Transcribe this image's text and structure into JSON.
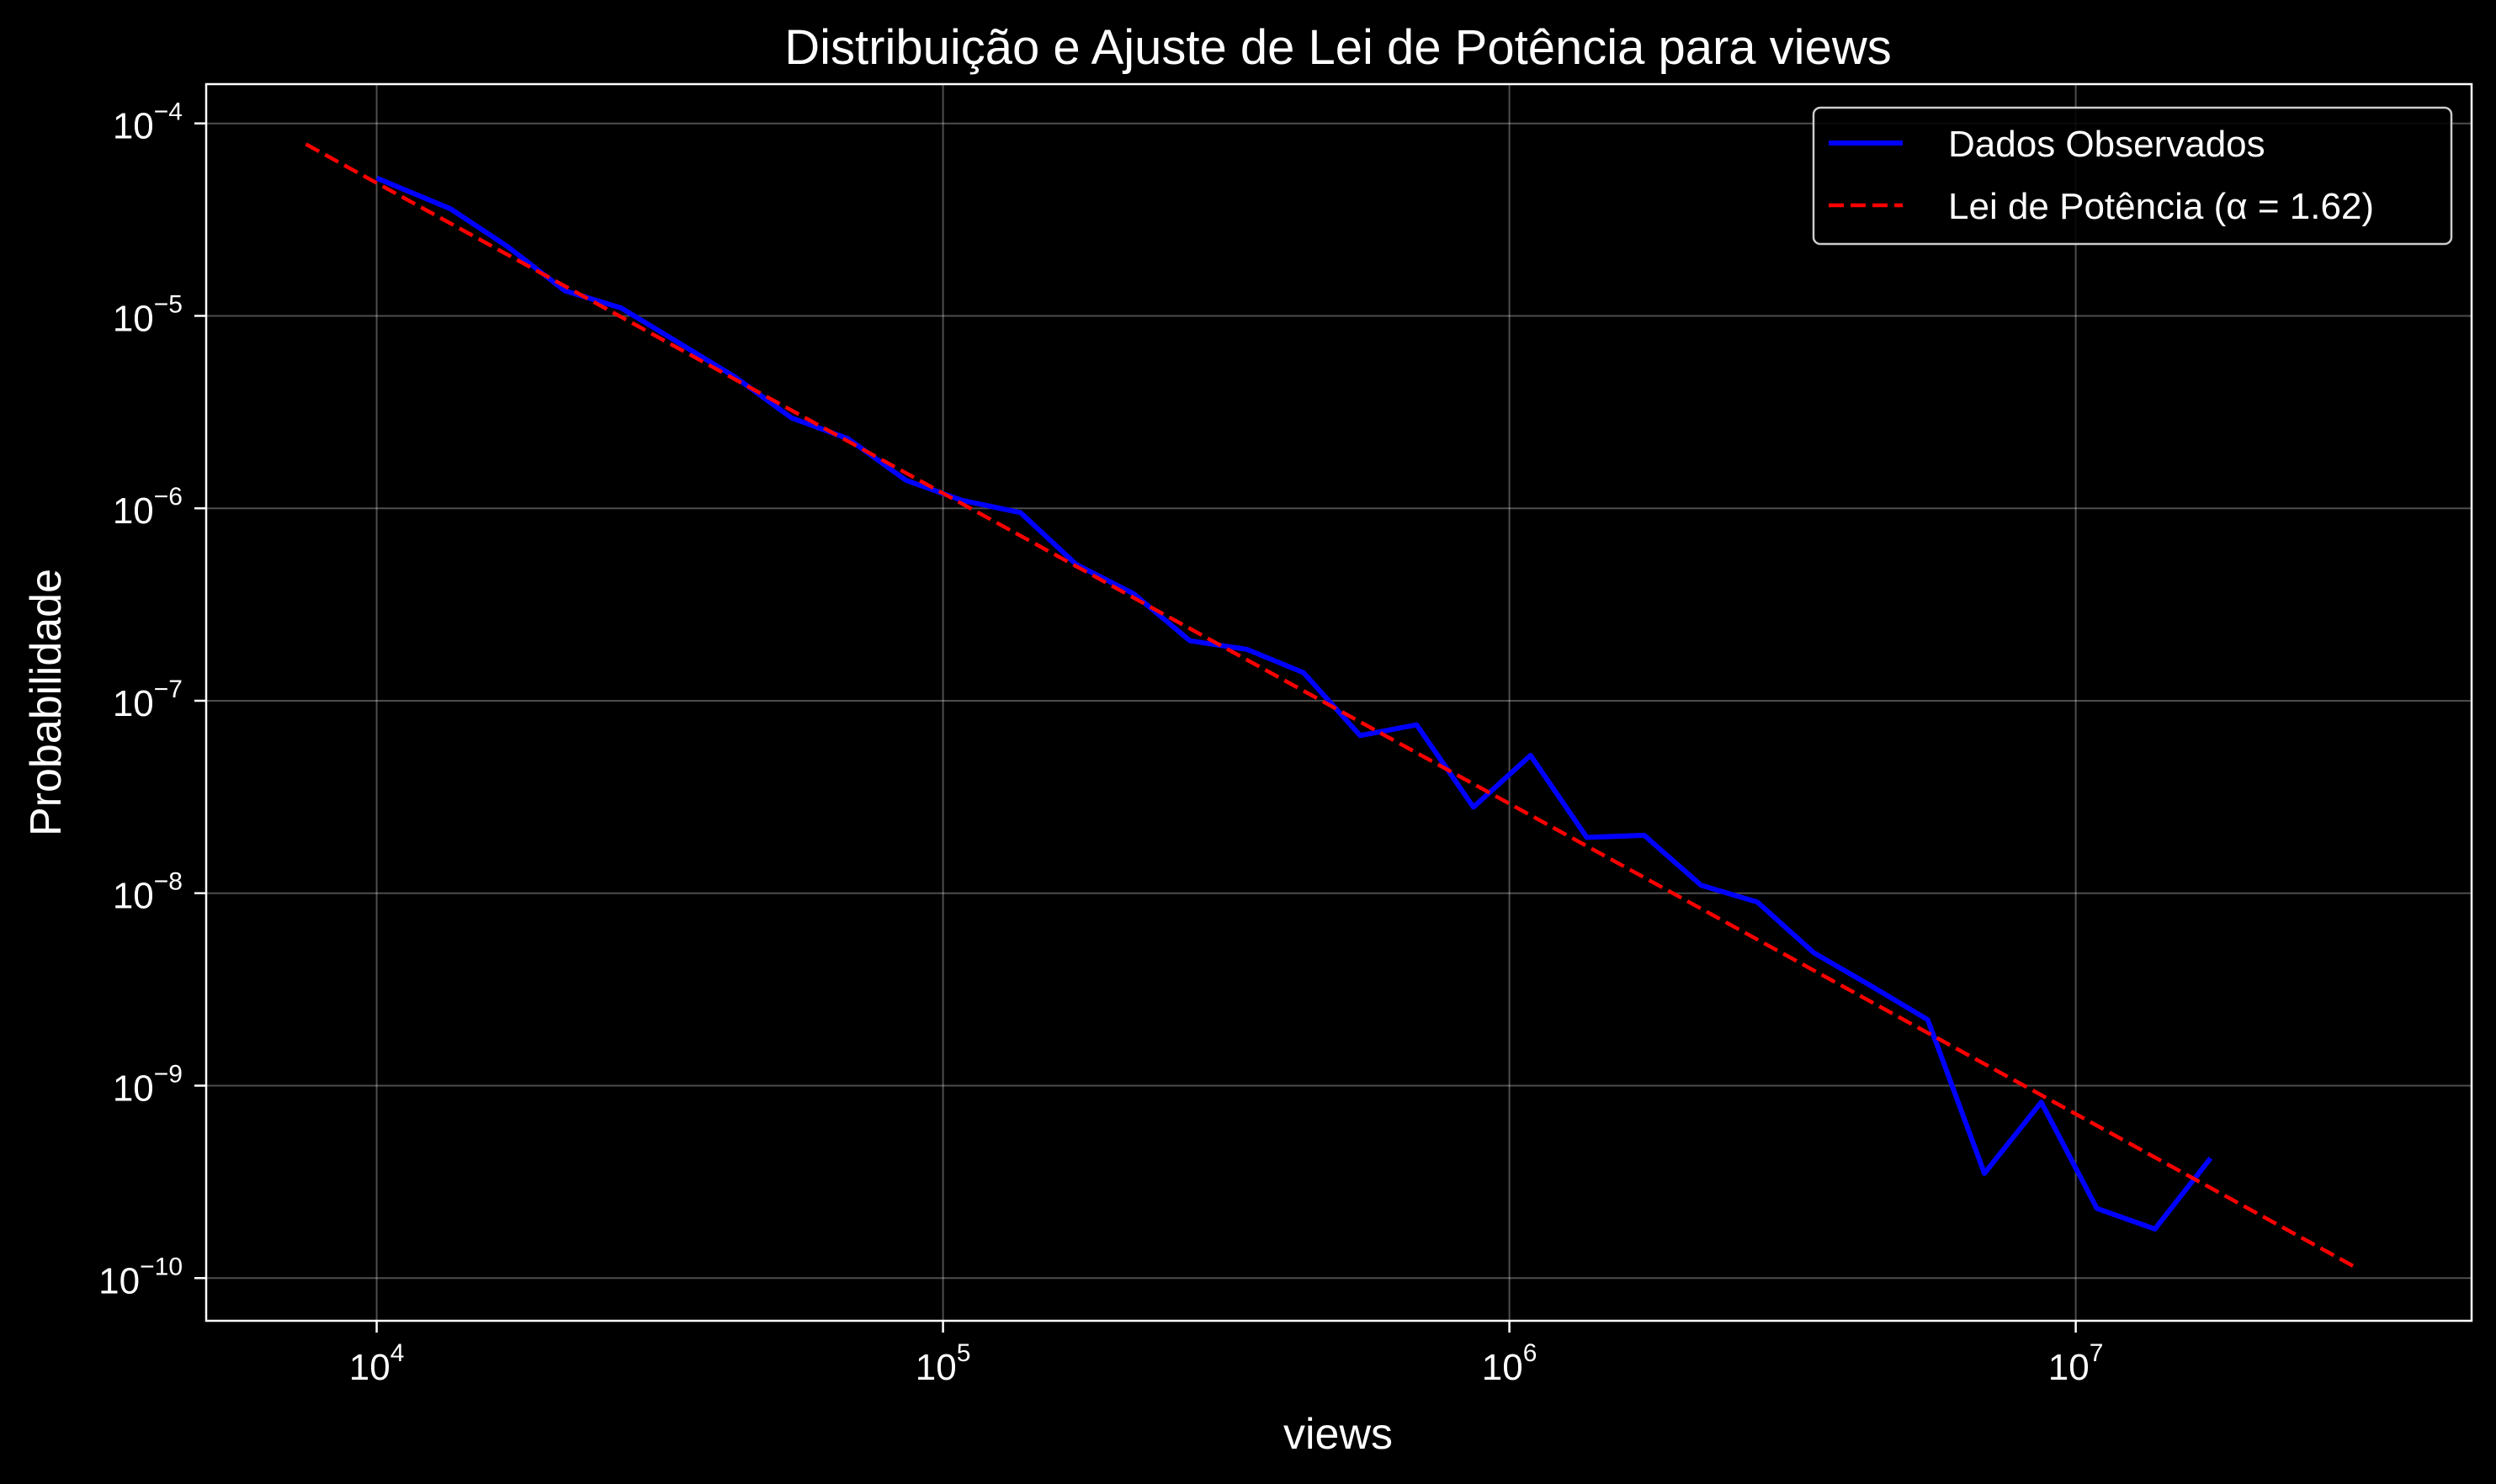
{
  "chart_data": {
    "type": "line",
    "title": "Distribuição e Ajuste de Lei de Potência para views",
    "xlabel": "views",
    "ylabel": "Probabilidade",
    "x_scale": "log",
    "y_scale": "log",
    "xlim": [
      5000,
      50000000
    ],
    "ylim": [
      6e-11,
      0.00016
    ],
    "grid": true,
    "legend_position": "top-right",
    "x_ticks": [
      {
        "value": 10000,
        "base": "10",
        "exp": "4"
      },
      {
        "value": 100000,
        "base": "10",
        "exp": "5"
      },
      {
        "value": 1000000,
        "base": "10",
        "exp": "6"
      },
      {
        "value": 10000000,
        "base": "10",
        "exp": "7"
      }
    ],
    "y_ticks": [
      {
        "value": 0.0001,
        "base": "10",
        "exp": "−4"
      },
      {
        "value": 1e-05,
        "base": "10",
        "exp": "−5"
      },
      {
        "value": 1e-06,
        "base": "10",
        "exp": "−6"
      },
      {
        "value": 1e-07,
        "base": "10",
        "exp": "−7"
      },
      {
        "value": 1e-08,
        "base": "10",
        "exp": "−8"
      },
      {
        "value": 1e-09,
        "base": "10",
        "exp": "−9"
      },
      {
        "value": 1e-10,
        "base": "10",
        "exp": "−10"
      }
    ],
    "series": [
      {
        "name": "Dados Observados",
        "color": "#0000ff",
        "style": "solid",
        "points": [
          [
            10000,
            5.2e-05
          ],
          [
            13500,
            3.6e-05
          ],
          [
            17000,
            2.3e-05
          ],
          [
            21500,
            1.35e-05
          ],
          [
            27000,
            1.1e-05
          ],
          [
            34000,
            7.3e-06
          ],
          [
            43000,
            4.8e-06
          ],
          [
            54000,
            2.95e-06
          ],
          [
            68000,
            2.3e-06
          ],
          [
            86000,
            1.4e-06
          ],
          [
            108000,
            1.1e-06
          ],
          [
            137000,
            9.5e-07
          ],
          [
            172000,
            5.1e-07
          ],
          [
            217000,
            3.6e-07
          ],
          [
            273000,
            2.05e-07
          ],
          [
            344000,
            1.85e-07
          ],
          [
            433000,
            1.4e-07
          ],
          [
            545000,
            6.6e-08
          ],
          [
            686000,
            7.5e-08
          ],
          [
            864000,
            2.8e-08
          ],
          [
            1090000,
            5.2e-08
          ],
          [
            1370000,
            1.95e-08
          ],
          [
            1730000,
            2e-08
          ],
          [
            2180000,
            1.1e-08
          ],
          [
            2740000,
            9e-09
          ],
          [
            3450000,
            4.9e-09
          ],
          [
            4350000,
            3.3e-09
          ],
          [
            5480000,
            2.2e-09
          ],
          [
            6900000,
            3.5e-10
          ],
          [
            8690000,
            8.2e-10
          ],
          [
            10900000,
            2.3e-10
          ],
          [
            13800000,
            1.8e-10
          ],
          [
            17300000,
            4.2e-10
          ]
        ]
      },
      {
        "name": "Lei de Potência (α = 1.62)",
        "color": "#ff0000",
        "style": "dashed",
        "alpha": 1.62,
        "points": [
          [
            7500,
            7.8e-05
          ],
          [
            31000000,
            1.15e-10
          ]
        ]
      }
    ]
  }
}
